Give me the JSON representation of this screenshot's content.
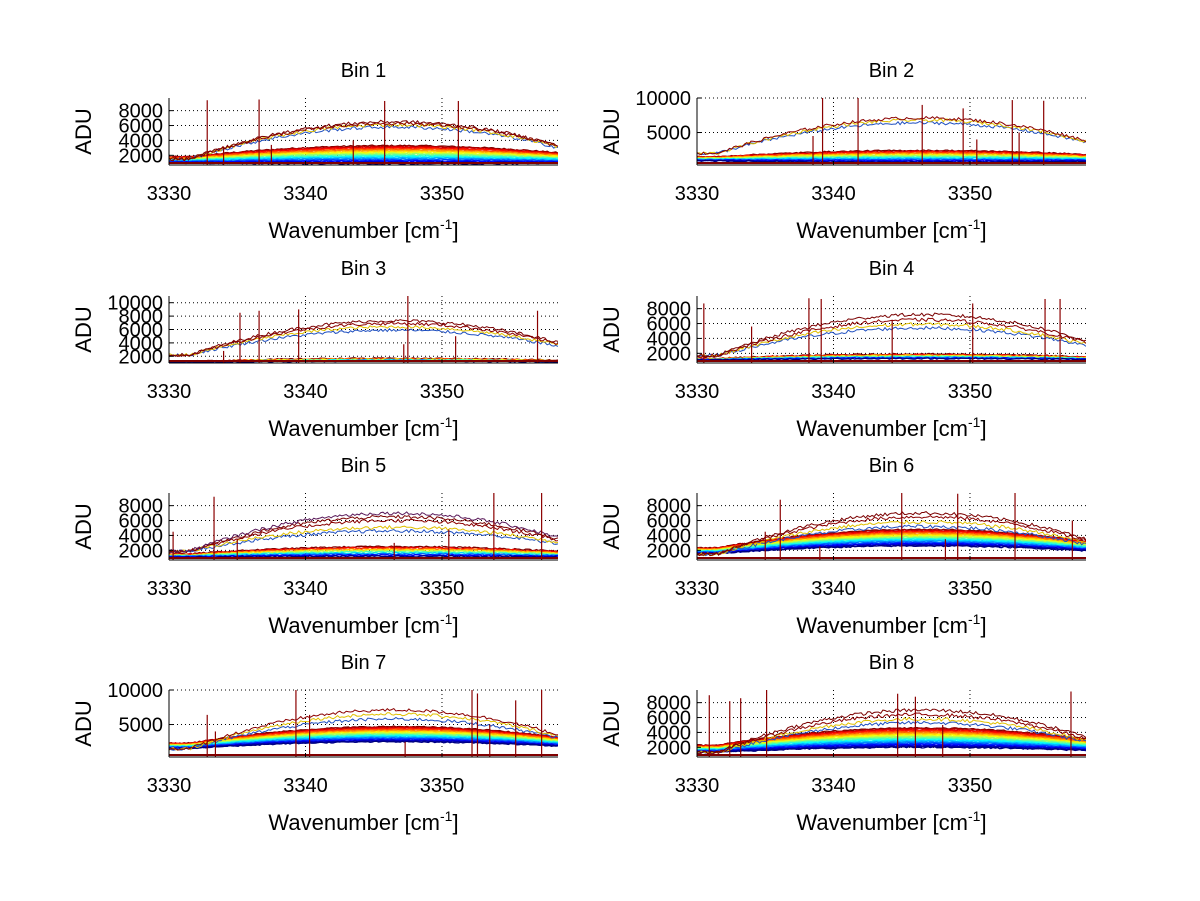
{
  "figure": {
    "background": "#ffffff"
  },
  "chart_data": [
    {
      "type": "line",
      "title": "Bin 1",
      "xlabel": "Wavenumber [cm",
      "xlabel_sup": "-1",
      "xlabel_end": "]",
      "ylabel": "ADU",
      "xlim": [
        3330,
        3358.5
      ],
      "ylim": [
        700,
        9700
      ],
      "xticks": [
        3330,
        3340,
        3350
      ],
      "yticks": [
        2000,
        4000,
        6000,
        8000
      ],
      "grid": true,
      "series_summary": {
        "upper_peak_values": [
          5800,
          6100,
          6300,
          6500
        ],
        "upper_edge_value": 1500,
        "lower_band_peak": 3300,
        "lower_band_floor": 900,
        "lower_band_count": 24
      },
      "spikes": [
        {
          "x": 3332.8,
          "y": 9400
        },
        {
          "x": 3336.6,
          "y": 9500
        },
        {
          "x": 3345.8,
          "y": 9300
        },
        {
          "x": 3351.2,
          "y": 9300
        },
        {
          "x": 3343.5,
          "y": 4000
        },
        {
          "x": 3334,
          "y": 3000
        },
        {
          "x": 3337.5,
          "y": 3400
        }
      ]
    },
    {
      "type": "line",
      "title": "Bin 2",
      "xlabel": "Wavenumber [cm",
      "xlabel_sup": "-1",
      "xlabel_end": "]",
      "ylabel": "ADU",
      "xlim": [
        3330,
        3358.5
      ],
      "ylim": [
        300,
        10000
      ],
      "xticks": [
        3330,
        3340,
        3350
      ],
      "yticks": [
        5000,
        10000
      ],
      "grid": true,
      "series_summary": {
        "upper_peak_values": [
          6400,
          6800,
          7100
        ],
        "upper_edge_value": 2000,
        "lower_band_peak": 2400,
        "lower_band_floor": 700,
        "lower_band_count": 16
      },
      "spikes": [
        {
          "x": 3339.2,
          "y": 10000
        },
        {
          "x": 3341.8,
          "y": 10000
        },
        {
          "x": 3346.5,
          "y": 9000
        },
        {
          "x": 3349.5,
          "y": 8500
        },
        {
          "x": 3353.1,
          "y": 9700
        },
        {
          "x": 3355.4,
          "y": 9600
        },
        {
          "x": 3338.5,
          "y": 4500
        },
        {
          "x": 3350.5,
          "y": 4000
        },
        {
          "x": 3353.6,
          "y": 5000
        }
      ]
    },
    {
      "type": "line",
      "title": "Bin 3",
      "xlabel": "Wavenumber [cm",
      "xlabel_sup": "-1",
      "xlabel_end": "]",
      "ylabel": "ADU",
      "xlim": [
        3330,
        3358.5
      ],
      "ylim": [
        1000,
        11000
      ],
      "xticks": [
        3330,
        3340,
        3350
      ],
      "yticks": [
        2000,
        4000,
        6000,
        8000,
        10000
      ],
      "grid": true,
      "series_summary": {
        "upper_peak_values": [
          5900,
          6400,
          6900,
          7300
        ],
        "upper_edge_value": 2200,
        "lower_band_peak": 1700,
        "lower_band_floor": 1300,
        "lower_band_count": 6
      },
      "spikes": [
        {
          "x": 3335.2,
          "y": 8500
        },
        {
          "x": 3336.6,
          "y": 8800
        },
        {
          "x": 3339.5,
          "y": 9000
        },
        {
          "x": 3347.5,
          "y": 11000
        },
        {
          "x": 3351,
          "y": 5000
        },
        {
          "x": 3357,
          "y": 8800
        },
        {
          "x": 3334,
          "y": 2800
        },
        {
          "x": 3347.2,
          "y": 3800
        }
      ]
    },
    {
      "type": "line",
      "title": "Bin 4",
      "xlabel": "Wavenumber [cm",
      "xlabel_sup": "-1",
      "xlabel_end": "]",
      "ylabel": "ADU",
      "xlim": [
        3330,
        3358.5
      ],
      "ylim": [
        700,
        9700
      ],
      "xticks": [
        3330,
        3340,
        3350
      ],
      "yticks": [
        2000,
        4000,
        6000,
        8000
      ],
      "grid": true,
      "series_summary": {
        "upper_peak_values": [
          5400,
          5900,
          6500,
          7200
        ],
        "upper_edge_value": 1700,
        "lower_band_peak": 1900,
        "lower_band_floor": 1300,
        "lower_band_count": 8
      },
      "spikes": [
        {
          "x": 3330.5,
          "y": 8700
        },
        {
          "x": 3334,
          "y": 5600
        },
        {
          "x": 3338.2,
          "y": 9400
        },
        {
          "x": 3339.1,
          "y": 9300
        },
        {
          "x": 3344.3,
          "y": 6500
        },
        {
          "x": 3350.2,
          "y": 8700
        },
        {
          "x": 3355.5,
          "y": 9300
        },
        {
          "x": 3356.6,
          "y": 9300
        }
      ]
    },
    {
      "type": "line",
      "title": "Bin 5",
      "xlabel": "Wavenumber [cm",
      "xlabel_sup": "-1",
      "xlabel_end": "]",
      "ylabel": "ADU",
      "xlim": [
        3330,
        3358.5
      ],
      "ylim": [
        700,
        9700
      ],
      "xticks": [
        3330,
        3340,
        3350
      ],
      "yticks": [
        2000,
        4000,
        6000,
        8000
      ],
      "grid": true,
      "series_summary": {
        "upper_peak_values": [
          4600,
          5100,
          6000,
          6500,
          7000
        ],
        "upper_edge_value": 1900,
        "lower_band_peak": 2500,
        "lower_band_floor": 1200,
        "lower_band_count": 10
      },
      "spikes": [
        {
          "x": 3330.3,
          "y": 4500
        },
        {
          "x": 3333.3,
          "y": 9200
        },
        {
          "x": 3335,
          "y": 3500
        },
        {
          "x": 3346.5,
          "y": 3000
        },
        {
          "x": 3350.5,
          "y": 4800
        },
        {
          "x": 3353.8,
          "y": 9700
        },
        {
          "x": 3357.3,
          "y": 9700
        }
      ]
    },
    {
      "type": "line",
      "title": "Bin 6",
      "xlabel": "Wavenumber [cm",
      "xlabel_sup": "-1",
      "xlabel_end": "]",
      "ylabel": "ADU",
      "xlim": [
        3330,
        3358.5
      ],
      "ylim": [
        700,
        9700
      ],
      "xticks": [
        3330,
        3340,
        3350
      ],
      "yticks": [
        2000,
        4000,
        6000,
        8000
      ],
      "grid": true,
      "series_summary": {
        "upper_peak_values": [
          5200,
          5800,
          6500,
          7000
        ],
        "upper_edge_value": 1500,
        "lower_band_peak": 4800,
        "lower_band_floor": 2600,
        "lower_band_count": 26
      },
      "spikes": [
        {
          "x": 3335,
          "y": 4500
        },
        {
          "x": 3336.1,
          "y": 8800
        },
        {
          "x": 3339,
          "y": 2500
        },
        {
          "x": 3345,
          "y": 9700
        },
        {
          "x": 3349.1,
          "y": 9600
        },
        {
          "x": 3348.2,
          "y": 3500
        },
        {
          "x": 3353.3,
          "y": 9700
        },
        {
          "x": 3357.5,
          "y": 6000
        }
      ]
    },
    {
      "type": "line",
      "title": "Bin 7",
      "xlabel": "Wavenumber [cm",
      "xlabel_sup": "-1",
      "xlabel_end": "]",
      "ylabel": "ADU",
      "xlim": [
        3330,
        3358.5
      ],
      "ylim": [
        300,
        10000
      ],
      "xticks": [
        3330,
        3340,
        3350
      ],
      "yticks": [
        5000,
        10000
      ],
      "grid": true,
      "series_summary": {
        "upper_peak_values": [
          5800,
          6500,
          7100
        ],
        "upper_edge_value": 1500,
        "lower_band_peak": 4700,
        "lower_band_floor": 2500,
        "lower_band_count": 26
      },
      "spikes": [
        {
          "x": 3332.8,
          "y": 6400
        },
        {
          "x": 3333.4,
          "y": 4000
        },
        {
          "x": 3339.3,
          "y": 10000
        },
        {
          "x": 3340.3,
          "y": 6400
        },
        {
          "x": 3347.3,
          "y": 2500
        },
        {
          "x": 3352.2,
          "y": 10000
        },
        {
          "x": 3352.6,
          "y": 9500
        },
        {
          "x": 3355.4,
          "y": 8500
        },
        {
          "x": 3357.3,
          "y": 10000
        },
        {
          "x": 3353.5,
          "y": 5000
        }
      ]
    },
    {
      "type": "line",
      "title": "Bin 8",
      "xlabel": "Wavenumber [cm",
      "xlabel_sup": "-1",
      "xlabel_end": "]",
      "ylabel": "ADU",
      "xlim": [
        3330,
        3358.5
      ],
      "ylim": [
        700,
        9700
      ],
      "xticks": [
        3330,
        3340,
        3350
      ],
      "yticks": [
        2000,
        4000,
        6000,
        8000
      ],
      "grid": true,
      "series_summary": {
        "upper_peak_values": [
          5300,
          5800,
          6400,
          7000
        ],
        "upper_edge_value": 1300,
        "lower_band_peak": 4600,
        "lower_band_floor": 2000,
        "lower_band_count": 30
      },
      "spikes": [
        {
          "x": 3330.9,
          "y": 9000
        },
        {
          "x": 3332.4,
          "y": 8200
        },
        {
          "x": 3333.2,
          "y": 8600
        },
        {
          "x": 3335.1,
          "y": 9700
        },
        {
          "x": 3344.7,
          "y": 9200
        },
        {
          "x": 3346,
          "y": 8800
        },
        {
          "x": 3348,
          "y": 5000
        },
        {
          "x": 3357.4,
          "y": 9500
        }
      ]
    }
  ]
}
